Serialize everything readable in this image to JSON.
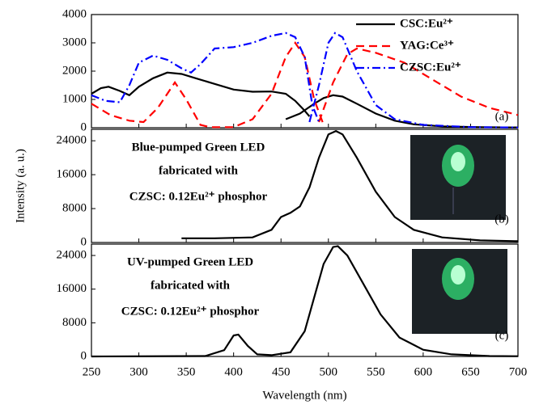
{
  "chart_data": [
    {
      "type": "line",
      "panel_label": "(a)",
      "legend": "upper right",
      "xlim": [
        250,
        700
      ],
      "ylim": [
        0,
        4000
      ],
      "yticks": [
        0,
        1000,
        2000,
        3000,
        4000
      ],
      "series": [
        {
          "name": "CSC:Eu²⁺",
          "color": "#000000",
          "style": "solid",
          "x": [
            250,
            260,
            268,
            280,
            290,
            300,
            315,
            330,
            345,
            360,
            380,
            400,
            420,
            440,
            455,
            465,
            475,
            480,
            470,
            455,
            470,
            485,
            495,
            505,
            515,
            530,
            550,
            570,
            590,
            620,
            660,
            700
          ],
          "values": [
            1200,
            1400,
            1450,
            1300,
            1150,
            1450,
            1750,
            1950,
            1900,
            1750,
            1550,
            1350,
            1270,
            1280,
            1200,
            950,
            600,
            400,
            null,
            300,
            500,
            850,
            1050,
            1150,
            1100,
            850,
            500,
            250,
            120,
            50,
            20,
            10
          ]
        },
        {
          "name": "YAG:Ce³⁺",
          "color": "#ff0000",
          "style": "dash",
          "x": [
            250,
            270,
            290,
            305,
            320,
            338,
            350,
            365,
            375,
            400,
            420,
            440,
            455,
            465,
            475,
            485,
            495,
            492,
            490,
            505,
            520,
            530,
            550,
            580,
            610,
            640,
            670,
            700
          ],
          "values": [
            850,
            450,
            250,
            200,
            700,
            1600,
            1000,
            100,
            20,
            20,
            300,
            1200,
            2500,
            3000,
            2500,
            1000,
            100,
            null,
            200,
            1600,
            2600,
            2800,
            2650,
            2300,
            1700,
            1100,
            700,
            450
          ]
        },
        {
          "name": "CZSC:Eu²⁺",
          "color": "#0000ff",
          "style": "dashdot",
          "x": [
            250,
            265,
            280,
            290,
            300,
            315,
            330,
            345,
            355,
            365,
            380,
            400,
            420,
            440,
            455,
            465,
            475,
            483,
            490,
            485,
            480,
            490,
            500,
            507,
            515,
            530,
            550,
            570,
            600,
            650,
            700
          ],
          "values": [
            1150,
            950,
            900,
            1500,
            2300,
            2550,
            2400,
            2100,
            1950,
            2250,
            2800,
            2850,
            3000,
            3250,
            3350,
            3200,
            2500,
            800,
            200,
            null,
            200,
            1500,
            3000,
            3350,
            3200,
            2000,
            800,
            300,
            100,
            20,
            10
          ]
        }
      ]
    },
    {
      "type": "line",
      "panel_label": "(b)",
      "ylabel": "Intensity (a. u.)",
      "annotations": [
        "Blue-pumped Green LED",
        "fabricated with",
        "CZSC: 0.12Eu²⁺ phosphor"
      ],
      "xlim": [
        250,
        700
      ],
      "ylim": [
        0,
        26700
      ],
      "yticks": [
        0,
        8000,
        16000,
        24000
      ],
      "color": "#000000",
      "x": [
        345,
        380,
        420,
        440,
        450,
        460,
        470,
        480,
        490,
        500,
        508,
        515,
        530,
        550,
        570,
        590,
        620,
        660,
        700
      ],
      "values": [
        1000,
        1000,
        1200,
        3000,
        6000,
        7000,
        8500,
        13000,
        20000,
        25500,
        26300,
        25500,
        20000,
        12000,
        6000,
        3000,
        1200,
        500,
        300
      ]
    },
    {
      "type": "line",
      "panel_label": "(c)",
      "xlabel": "Wavelength (nm)",
      "annotations": [
        "UV-pumped Green LED",
        "fabricated with",
        "CZSC: 0.12Eu²⁺ phosphor"
      ],
      "xlim": [
        250,
        700
      ],
      "xticks": [
        250,
        300,
        350,
        400,
        450,
        500,
        550,
        600,
        650,
        700
      ],
      "ylim": [
        0,
        26700
      ],
      "yticks": [
        0,
        8000,
        16000,
        24000
      ],
      "color": "#000000",
      "x": [
        250,
        370,
        390,
        400,
        405,
        415,
        425,
        440,
        460,
        475,
        485,
        495,
        505,
        510,
        520,
        535,
        555,
        575,
        600,
        630,
        670,
        700
      ],
      "values": [
        0,
        100,
        1500,
        5000,
        5200,
        2500,
        500,
        300,
        1000,
        6000,
        14000,
        22000,
        26000,
        26200,
        24000,
        18000,
        10000,
        4500,
        1600,
        500,
        100,
        50
      ]
    }
  ]
}
